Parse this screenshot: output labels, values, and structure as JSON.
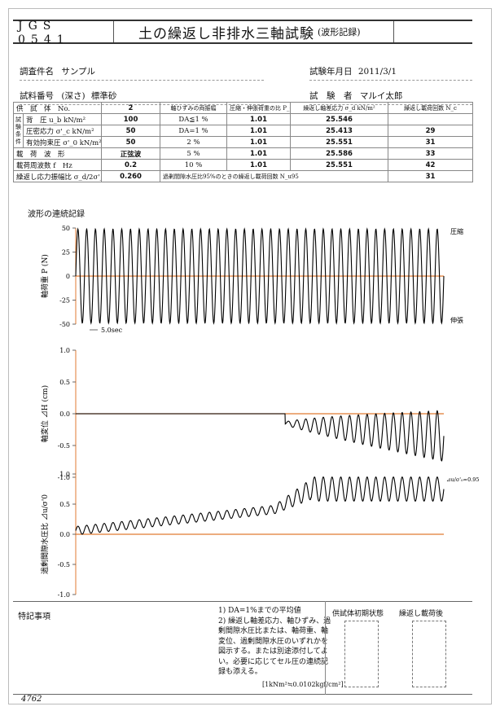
{
  "header": {
    "code": "JGS　0541",
    "title": "土の繰返し非排水三軸試験",
    "subtitle": "(波形記録)"
  },
  "info": {
    "survey_label": "調査件名",
    "survey_value": "サンプル",
    "date_label": "試験年月日",
    "date_value": "2011/3/1",
    "sample_label": "試料番号",
    "sample_paren": "(深さ)",
    "sample_value": "標準砂",
    "tester_label": "試　験　者",
    "tester_value": "マルイ太郎"
  },
  "table": {
    "r1": {
      "label": "供　試　体　No.",
      "value": "2",
      "h1": "軸ひずみの両振幅",
      "h2": "圧縮・伸張荷重の比 P_C/P_E",
      "h3": "繰返し軸差応力 σ_d kN/m²",
      "h4": "繰返し載荷回数 N_c"
    },
    "cond_label": "試験条件",
    "r2": {
      "label": "背　圧 u_b kN/m²",
      "value": "100",
      "da": "DA≦1 %",
      "ratio": "1.01",
      "sigma": "25.546",
      "n": ""
    },
    "r3": {
      "label": "圧密応力 σ'_c kN/m²",
      "value": "50",
      "da": "DA=1 %",
      "ratio": "1.01",
      "sigma": "25.413",
      "n": "29"
    },
    "r4": {
      "label": "有効拘束圧 σ'_0 kN/m²",
      "value": "50",
      "da": "2 %",
      "ratio": "1.01",
      "sigma": "25.551",
      "n": "31"
    },
    "r5": {
      "label": "載　荷　波　形",
      "value": "正弦波",
      "da": "5 %",
      "ratio": "1.01",
      "sigma": "25.586",
      "n": "33"
    },
    "r6": {
      "label": "載荷周波数 f　Hz",
      "value": "0.2",
      "da": "10 %",
      "ratio": "1.01",
      "sigma": "25.551",
      "n": "42"
    },
    "r7": {
      "label": "繰返し応力振幅比 σ_d/2σ'_0",
      "value": "0.260",
      "da": "過剰間隙水圧比95%のときの繰返し載荷回数 N_u95",
      "n95": "31"
    }
  },
  "section_label": "波形の連続記録",
  "charts": {
    "c1": {
      "ylabel": "軸荷重 P (N)",
      "ticks": [
        "50",
        "25",
        "0",
        "-25",
        "-50"
      ],
      "top_note": "圧縮",
      "bottom_note": "伸張",
      "time_note": "5.0sec"
    },
    "c2": {
      "ylabel": "軸変位 ⊿H (cm)",
      "ticks": [
        "1.0",
        "0.5",
        "0.0",
        "-0.5",
        "-1.0"
      ]
    },
    "c3": {
      "ylabel": "過剰間隙水圧比 ⊿u/σ'0",
      "ticks": [
        "1.0",
        "0.5",
        "0.0",
        "-0.5",
        "-1.0"
      ],
      "note": "⊿u/σ'₀=0.95"
    }
  },
  "chart_data": [
    {
      "type": "line",
      "title": "",
      "ylabel": "軸荷重 P (N)",
      "ylim": [
        -50,
        50
      ],
      "series": [
        {
          "amplitude": 49,
          "cycles": 42
        }
      ]
    },
    {
      "type": "line",
      "title": "",
      "ylabel": "軸変位 ⊿H (cm)",
      "ylim": [
        -1.0,
        1.0
      ]
    },
    {
      "type": "line",
      "title": "",
      "ylabel": "過剰間隙水圧比 ⊿u/σ'0",
      "ylim": [
        -1.0,
        1.0
      ]
    }
  ],
  "footer": {
    "remarks_label": "特記事項",
    "notes": [
      "1) DA=1%までの平均値",
      "2) 繰返し軸差応力、軸ひずみ、過剰間隙水圧比または、軸荷重、軸変位、過剰間隙水圧のいずれかを図示する。または別途添付してよい。必要に応じてセル圧の連続記録も添える。"
    ],
    "unit_note": "[1kNm²≒0.0102kgf/cm²]",
    "initial_label": "供試体初期状態",
    "after_label": "繰返し載荷後",
    "page_no": "4762"
  },
  "colors": {
    "zero_line": "#e07a30",
    "waveform": "#000000"
  }
}
